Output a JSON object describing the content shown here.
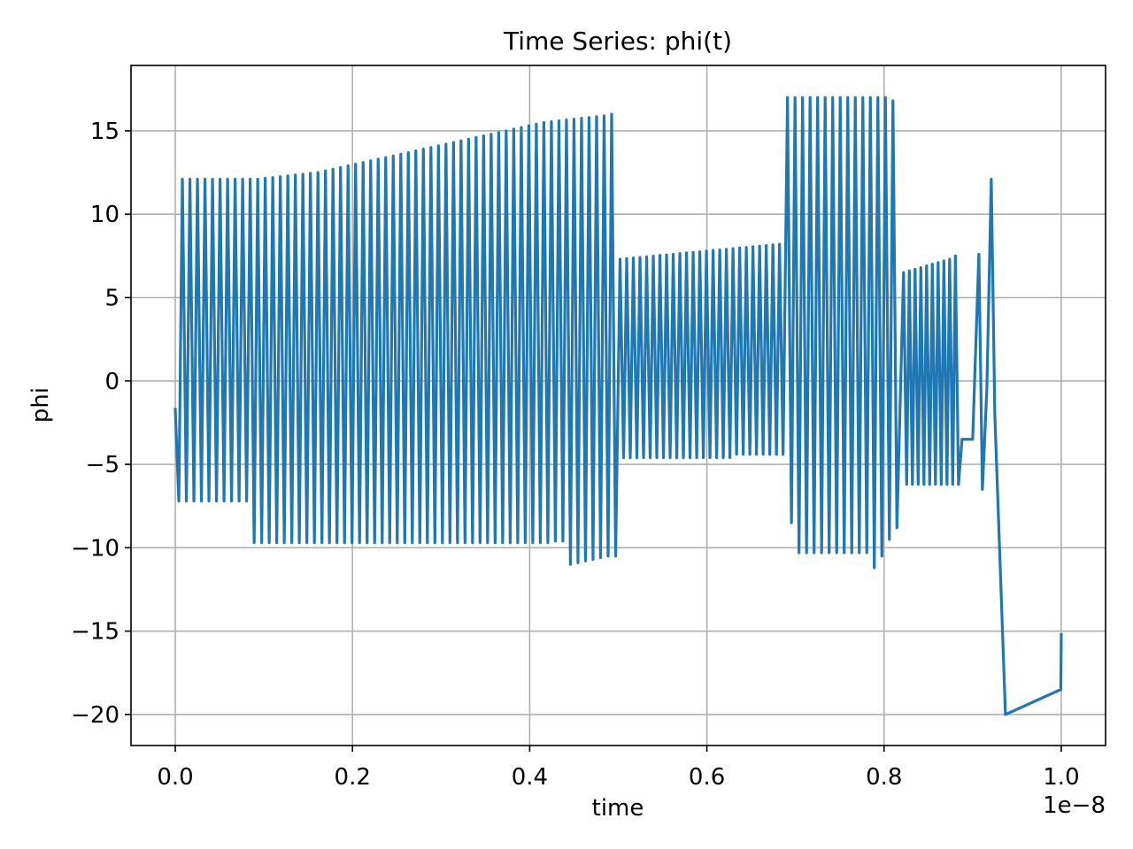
{
  "chart_data": {
    "type": "line",
    "title": "Time Series: phi(t)",
    "xlabel": "time",
    "ylabel": "phi",
    "x_offset_label": "1e−8",
    "color": "#1f77b4",
    "grid": true,
    "xlim": [
      -0.05,
      1.05
    ],
    "ylim": [
      -21.86,
      18.92
    ],
    "xticks": [
      {
        "value": 0,
        "label": "0.0"
      },
      0.2,
      0.4,
      0.6,
      0.8,
      {
        "value": 1,
        "label": "1.0"
      }
    ],
    "yticks": [
      {
        "value": -20,
        "label": "−20"
      },
      {
        "value": -15,
        "label": "−15"
      },
      {
        "value": -10,
        "label": "−10"
      },
      {
        "value": -5,
        "label": "−5"
      },
      0,
      5,
      10,
      15
    ],
    "x": [
      0,
      0.004,
      0.008,
      0.0125,
      0.0165,
      0.021,
      0.025,
      0.0295,
      0.0335,
      0.038,
      0.042,
      0.0465,
      0.0505,
      0.055,
      0.059,
      0.0635,
      0.0675,
      0.072,
      0.076,
      0.0805,
      0.0845,
      0.089,
      0.093,
      0.0975,
      0.1015,
      0.106,
      0.11,
      0.1145,
      0.1185,
      0.123,
      0.127,
      0.1315,
      0.1355,
      0.14,
      0.144,
      0.1485,
      0.1525,
      0.157,
      0.161,
      0.1655,
      0.1695,
      0.174,
      0.178,
      0.1825,
      0.1865,
      0.191,
      0.195,
      0.1995,
      0.2035,
      0.208,
      0.212,
      0.2165,
      0.2205,
      0.225,
      0.229,
      0.2335,
      0.2375,
      0.242,
      0.246,
      0.2505,
      0.2545,
      0.259,
      0.263,
      0.2675,
      0.2715,
      0.276,
      0.28,
      0.2845,
      0.2885,
      0.293,
      0.297,
      0.3015,
      0.3055,
      0.31,
      0.314,
      0.3185,
      0.3225,
      0.327,
      0.331,
      0.3355,
      0.3395,
      0.344,
      0.348,
      0.3525,
      0.3565,
      0.361,
      0.365,
      0.3695,
      0.3735,
      0.378,
      0.382,
      0.3865,
      0.3905,
      0.395,
      0.399,
      0.4035,
      0.4075,
      0.412,
      0.416,
      0.4205,
      0.4245,
      0.429,
      0.433,
      0.4375,
      0.4415,
      0.446,
      0.45,
      0.4545,
      0.4585,
      0.463,
      0.467,
      0.4715,
      0.4755,
      0.48,
      0.484,
      0.4885,
      0.4925,
      0.497,
      0.502,
      0.506,
      0.5095,
      0.5135,
      0.517,
      0.521,
      0.5245,
      0.5285,
      0.532,
      0.536,
      0.5395,
      0.5435,
      0.547,
      0.551,
      0.5545,
      0.5585,
      0.562,
      0.566,
      0.5695,
      0.5735,
      0.577,
      0.581,
      0.5845,
      0.5885,
      0.592,
      0.596,
      0.5995,
      0.6035,
      0.607,
      0.611,
      0.6145,
      0.6185,
      0.622,
      0.626,
      0.6295,
      0.6335,
      0.637,
      0.641,
      0.6445,
      0.6485,
      0.652,
      0.656,
      0.6595,
      0.6635,
      0.667,
      0.671,
      0.6745,
      0.6785,
      0.682,
      0.686,
      0.691,
      0.6955,
      0.6995,
      0.704,
      0.708,
      0.7125,
      0.7165,
      0.721,
      0.725,
      0.7295,
      0.7335,
      0.738,
      0.742,
      0.7465,
      0.7505,
      0.755,
      0.759,
      0.7635,
      0.7675,
      0.772,
      0.776,
      0.7805,
      0.7845,
      0.789,
      0.793,
      0.7975,
      0.8015,
      0.806,
      0.81,
      0.8145,
      0.822,
      0.8255,
      0.8285,
      0.832,
      0.835,
      0.8385,
      0.8415,
      0.845,
      0.848,
      0.8515,
      0.8545,
      0.858,
      0.861,
      0.8645,
      0.8675,
      0.871,
      0.874,
      0.8775,
      0.8805,
      0.884,
      0.888,
      0.9,
      0.907,
      0.911,
      0.916,
      0.921,
      0.925,
      0.93,
      0.937,
      0.9995,
      1.0
    ],
    "values": [
      -1.7,
      -7.2,
      12.1,
      -7.2,
      12.1,
      -7.2,
      12.1,
      -7.2,
      12.1,
      -7.2,
      12.1,
      -7.2,
      12.1,
      -7.2,
      12.1,
      -7.2,
      12.1,
      -7.2,
      12.1,
      -7.2,
      12.1,
      -9.7,
      12.1,
      -9.7,
      12.15,
      -9.7,
      12.2,
      -9.7,
      12.25,
      -9.7,
      12.3,
      -9.7,
      12.35,
      -9.7,
      12.4,
      -9.7,
      12.45,
      -9.7,
      12.5,
      -9.7,
      12.6,
      -9.7,
      12.7,
      -9.7,
      12.8,
      -9.7,
      12.9,
      -9.7,
      13.0,
      -9.7,
      13.1,
      -9.7,
      13.2,
      -9.7,
      13.3,
      -9.7,
      13.4,
      -9.7,
      13.5,
      -9.7,
      13.6,
      -9.7,
      13.7,
      -9.7,
      13.8,
      -9.7,
      13.9,
      -9.7,
      14.0,
      -9.7,
      14.1,
      -9.7,
      14.2,
      -9.7,
      14.3,
      -9.7,
      14.4,
      -9.7,
      14.5,
      -9.7,
      14.6,
      -9.7,
      14.7,
      -9.7,
      14.8,
      -9.7,
      14.9,
      -9.7,
      15.0,
      -9.7,
      15.1,
      -9.7,
      15.2,
      -9.7,
      15.3,
      -9.7,
      15.4,
      -9.7,
      15.5,
      -9.7,
      15.55,
      -9.6,
      15.6,
      -9.6,
      15.65,
      -11.0,
      15.7,
      -10.9,
      15.75,
      -10.8,
      15.8,
      -10.7,
      15.85,
      -10.6,
      15.9,
      -10.5,
      16.0,
      -10.5,
      7.3,
      -4.6,
      7.34,
      -4.6,
      7.38,
      -4.6,
      7.41,
      -4.6,
      7.45,
      -4.6,
      7.49,
      -4.6,
      7.53,
      -4.6,
      7.56,
      -4.6,
      7.6,
      -4.6,
      7.64,
      -4.6,
      7.68,
      -4.6,
      7.71,
      -4.6,
      7.75,
      -4.6,
      7.79,
      -4.6,
      7.83,
      -4.6,
      7.86,
      -4.6,
      7.9,
      -4.6,
      7.94,
      -4.4,
      7.98,
      -4.4,
      8.01,
      -4.4,
      8.05,
      -4.4,
      8.09,
      -4.4,
      8.13,
      -4.4,
      8.16,
      -4.4,
      8.2,
      -4.4,
      17.0,
      -8.5,
      17.0,
      -10.3,
      17.0,
      -10.3,
      17.0,
      -10.3,
      17.0,
      -10.3,
      17.0,
      -10.3,
      17.0,
      -10.3,
      17.0,
      -10.3,
      17.0,
      -10.3,
      17.0,
      -10.3,
      17.0,
      -10.3,
      17.0,
      -11.2,
      17.0,
      -10.5,
      17.0,
      -9.5,
      16.8,
      -8.8,
      6.5,
      -6.2,
      6.6,
      -6.2,
      6.7,
      -6.2,
      6.8,
      -6.2,
      6.9,
      -6.2,
      7.0,
      -6.2,
      7.1,
      -6.2,
      7.2,
      -6.2,
      7.3,
      -6.2,
      7.5,
      -6.2,
      -3.5,
      -3.5,
      7.6,
      -6.5,
      -0.5,
      12.1,
      -2.0,
      -9.5,
      -20.0,
      -18.5,
      -15.2
    ]
  }
}
